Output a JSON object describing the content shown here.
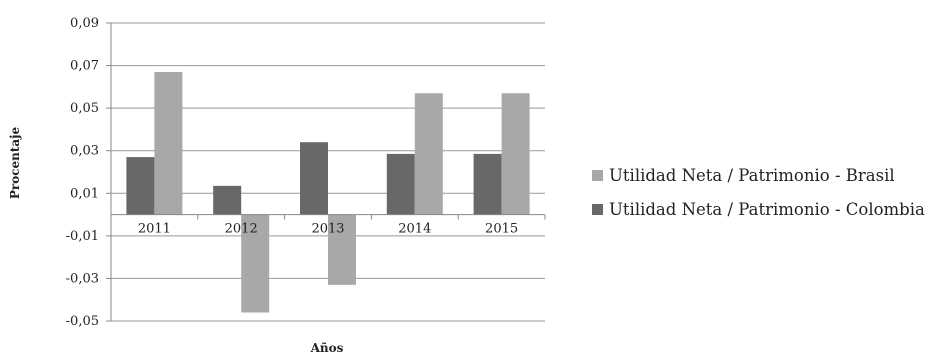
{
  "chart_data": {
    "type": "bar",
    "title": "",
    "xlabel": "Años",
    "ylabel": "Procentaje",
    "categories": [
      "2011",
      "2012",
      "2013",
      "2014",
      "2015"
    ],
    "series": [
      {
        "name": "Utilidad Neta / Patrimonio - Colombia",
        "values": [
          0.027,
          0.0135,
          0.034,
          0.0285,
          0.0285
        ],
        "color": "#686868"
      },
      {
        "name": "Utilidad Neta / Patrimonio - Brasil",
        "values": [
          0.067,
          -0.046,
          -0.033,
          0.057,
          0.057
        ],
        "color": "#a8a8a8"
      }
    ],
    "ylim": [
      -0.05,
      0.09
    ],
    "yticks": [
      0.09,
      0.07,
      0.05,
      0.03,
      0.01,
      -0.01,
      -0.03,
      -0.05
    ],
    "ytick_labels": [
      "0,09",
      "0,07",
      "0,05",
      "0,03",
      "0,01",
      "-0,01",
      "-0,03",
      "-0,05"
    ],
    "grid": true,
    "legend_position": "right",
    "legend_order": [
      1,
      0
    ],
    "colors": {
      "gridline": "#999999",
      "axis": "#888888",
      "text": "#222222"
    }
  }
}
